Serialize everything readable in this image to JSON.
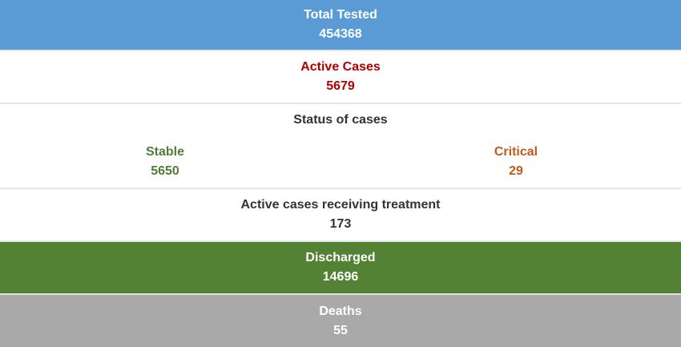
{
  "total_tested": {
    "label": "Total Tested",
    "value": "454368"
  },
  "active_cases": {
    "label": "Active Cases",
    "value": "5679"
  },
  "status_of_cases": {
    "title": "Status of cases",
    "stable": {
      "label": "Stable",
      "value": "5650"
    },
    "critical": {
      "label": "Critical",
      "value": "29"
    }
  },
  "treatment": {
    "label": "Active cases receiving treatment",
    "value": "173"
  },
  "discharged": {
    "label": "Discharged",
    "value": "14696"
  },
  "deaths": {
    "label": "Deaths",
    "value": "55"
  },
  "colors": {
    "total_bg": "#5b9bd5",
    "active_text": "#b30000",
    "stable_text": "#4f7d3a",
    "critical_text": "#c05a1c",
    "discharged_bg": "#538234",
    "deaths_bg": "#a9a9a9"
  }
}
